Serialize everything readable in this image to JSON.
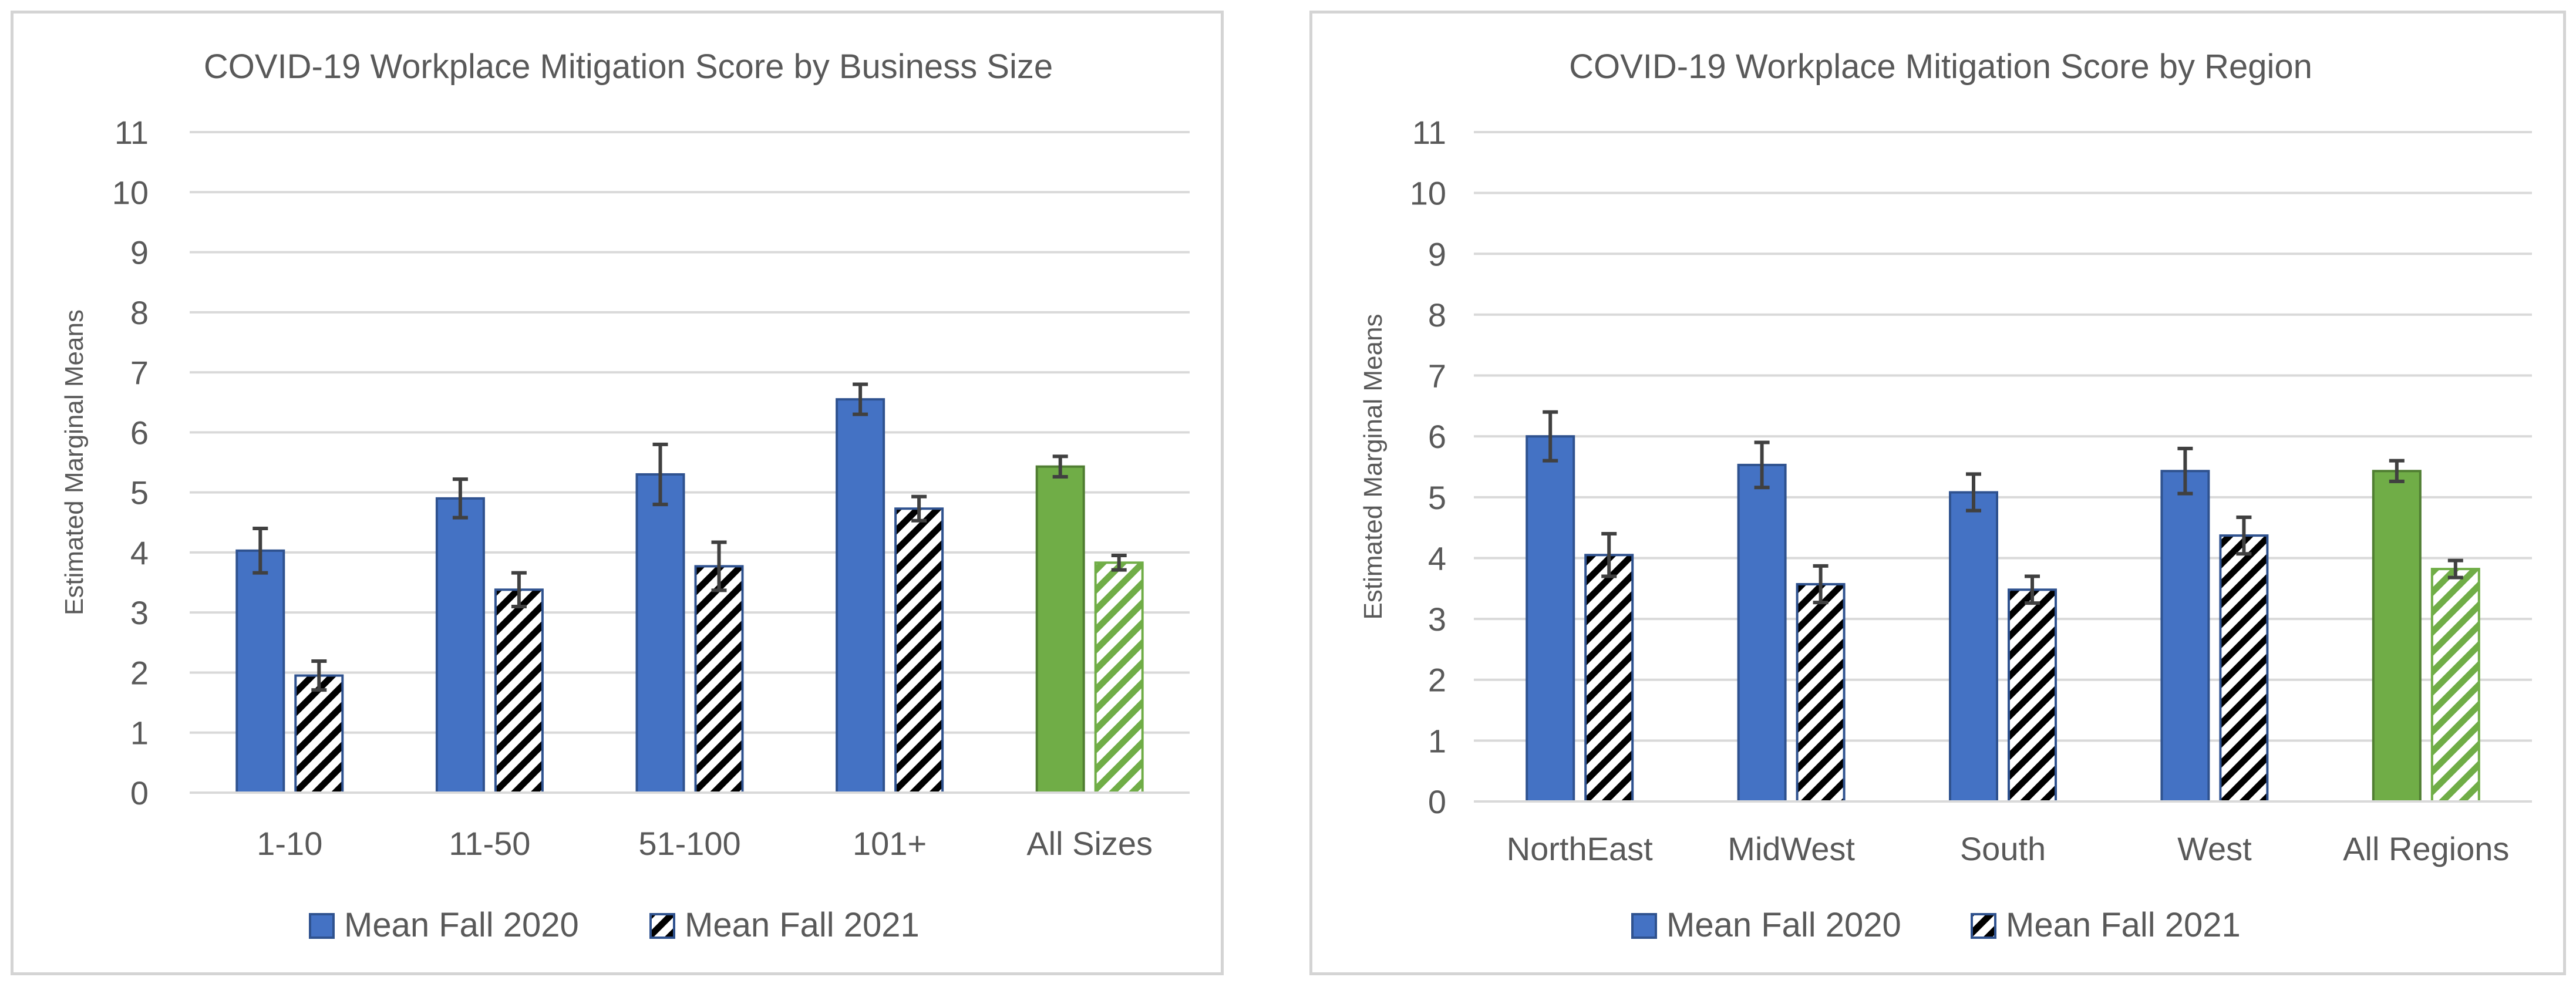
{
  "colors": {
    "blue": "#4472C4",
    "blue_border": "#2F528F",
    "green": "#70AD47",
    "green_border": "#507E32",
    "grid": "#D9D9D9",
    "axis_text": "#595959",
    "error_bar": "#404040",
    "hatch_dark": "#000000"
  },
  "chart_data": [
    {
      "type": "bar",
      "title": "COVID-19 Workplace Mitigation Score by Business Size",
      "xlabel": "",
      "ylabel": "Estimated Marginal Means",
      "ylim": [
        0,
        11
      ],
      "yticks": [
        "0",
        "1",
        "2",
        "3",
        "4",
        "5",
        "6",
        "7",
        "8",
        "9",
        "10",
        "11"
      ],
      "grid": true,
      "legend_position": "bottom",
      "categories": [
        "1-10",
        "11-50",
        "51-100",
        "101+",
        "All Sizes"
      ],
      "series": [
        {
          "name": "Mean Fall 2020",
          "pattern": "solid",
          "values": [
            4.03,
            4.9,
            5.3,
            6.55,
            5.43
          ],
          "error": [
            0.37,
            0.32,
            0.5,
            0.25,
            0.17
          ]
        },
        {
          "name": "Mean Fall 2021",
          "pattern": "hatched",
          "values": [
            1.95,
            3.38,
            3.77,
            4.73,
            3.83
          ],
          "error": [
            0.24,
            0.28,
            0.4,
            0.2,
            0.12
          ]
        }
      ],
      "highlight_category": "All Sizes"
    },
    {
      "type": "bar",
      "title": "COVID-19 Workplace Mitigation Score by Region",
      "xlabel": "",
      "ylabel": "Estimated Marginal Means",
      "ylim": [
        0,
        11
      ],
      "yticks": [
        "0",
        "1",
        "2",
        "3",
        "4",
        "5",
        "6",
        "7",
        "8",
        "9",
        "10",
        "11"
      ],
      "grid": true,
      "legend_position": "bottom",
      "categories": [
        "NorthEast",
        "MidWest",
        "South",
        "West",
        "All Regions"
      ],
      "series": [
        {
          "name": "Mean Fall 2020",
          "pattern": "solid",
          "values": [
            6.0,
            5.53,
            5.08,
            5.43,
            5.43
          ],
          "error": [
            0.4,
            0.37,
            0.3,
            0.37,
            0.17
          ]
        },
        {
          "name": "Mean Fall 2021",
          "pattern": "hatched",
          "values": [
            4.05,
            3.57,
            3.48,
            4.37,
            3.82
          ],
          "error": [
            0.35,
            0.3,
            0.22,
            0.3,
            0.14
          ]
        }
      ],
      "highlight_category": "All Regions"
    }
  ]
}
